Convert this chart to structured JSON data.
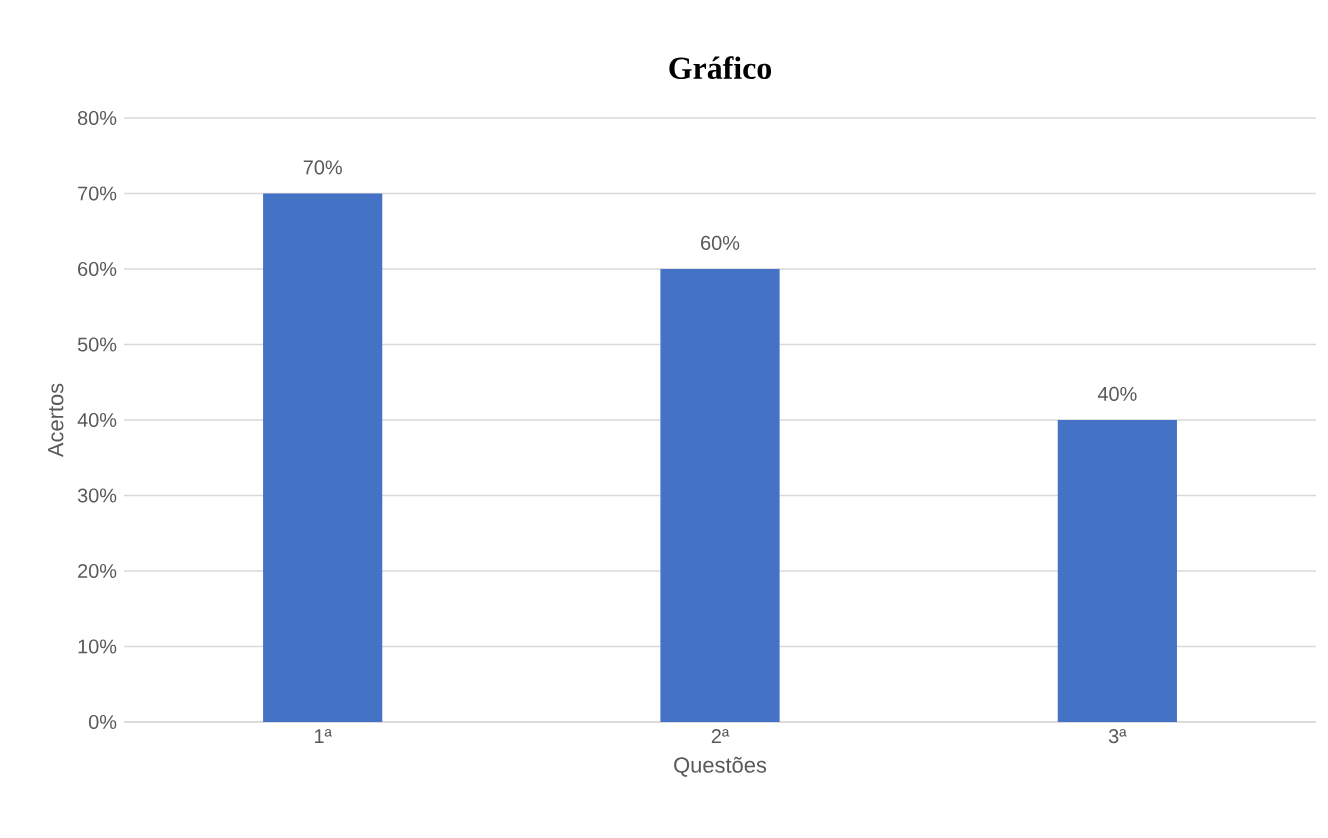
{
  "chart_data": {
    "type": "bar",
    "title": "Gráfico",
    "xlabel": "Questões",
    "ylabel": "Acertos",
    "categories": [
      "1ª",
      "2ª",
      "3ª"
    ],
    "values": [
      70,
      60,
      40
    ],
    "color": "#4472c4",
    "value_labels": [
      "70%",
      "60%",
      "40%"
    ],
    "ylim": [
      0,
      80
    ],
    "yticks": [
      {
        "value": 0,
        "label": "0%"
      },
      {
        "value": 10,
        "label": "10%"
      },
      {
        "value": 20,
        "label": "20%"
      },
      {
        "value": 30,
        "label": "30%"
      },
      {
        "value": 40,
        "label": "40%"
      },
      {
        "value": 50,
        "label": "50%"
      },
      {
        "value": 60,
        "label": "60%"
      },
      {
        "value": 70,
        "label": "70%"
      },
      {
        "value": 80,
        "label": "80%"
      }
    ],
    "grid": "y"
  }
}
